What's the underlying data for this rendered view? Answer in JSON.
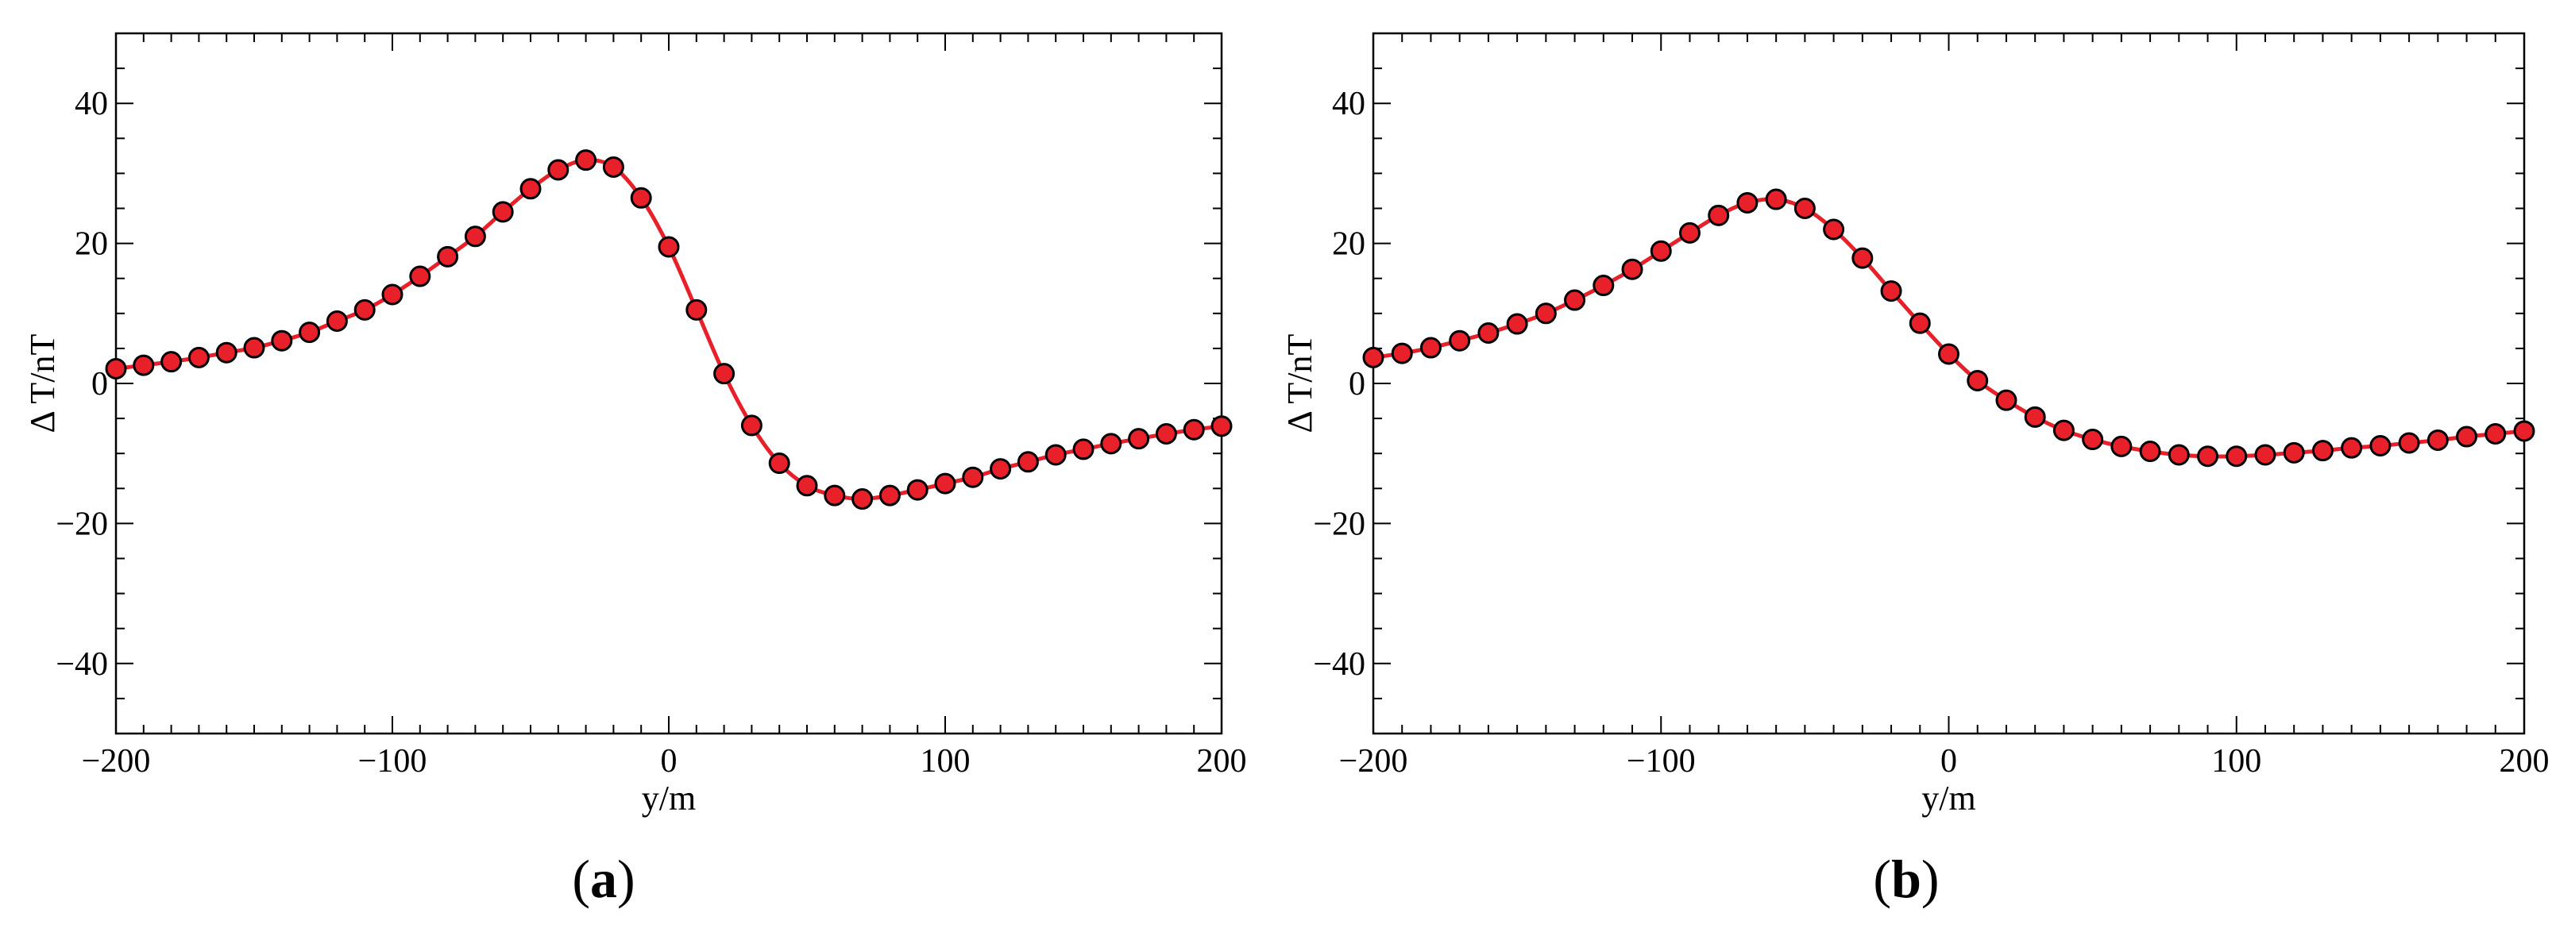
{
  "chart_data": [
    {
      "type": "line",
      "panel_label": "a",
      "xlabel": "y/m",
      "ylabel": "Δ T/nT",
      "xlim": [
        -200,
        200
      ],
      "ylim": [
        -50,
        50
      ],
      "xticks": [
        -200,
        -100,
        0,
        100,
        200
      ],
      "yticks": [
        -40,
        -20,
        0,
        20,
        40
      ],
      "xtick_labels": [
        "−200",
        "−100",
        "0",
        "100",
        "200"
      ],
      "ytick_labels": [
        "−40",
        "−20",
        "0",
        "20",
        "40"
      ],
      "grid": false,
      "line_color": "#e8202a",
      "marker_color": "#e8202a",
      "marker_edge_color": "#000000",
      "x": [
        -200,
        -190,
        -180,
        -170,
        -160,
        -150,
        -140,
        -130,
        -120,
        -110,
        -100,
        -90,
        -80,
        -70,
        -60,
        -50,
        -40,
        -30,
        -20,
        -10,
        0,
        10,
        20,
        30,
        40,
        50,
        60,
        70,
        80,
        90,
        100,
        110,
        120,
        130,
        140,
        150,
        160,
        170,
        180,
        190,
        200
      ],
      "y": [
        2.1,
        2.6,
        3.1,
        3.7,
        4.4,
        5.1,
        6.1,
        7.3,
        8.9,
        10.5,
        12.7,
        15.3,
        18.1,
        21.0,
        24.5,
        27.8,
        30.5,
        31.9,
        30.9,
        26.5,
        19.5,
        10.5,
        1.4,
        -6.0,
        -11.4,
        -14.6,
        -16.0,
        -16.5,
        -16.0,
        -15.2,
        -14.3,
        -13.4,
        -12.2,
        -11.2,
        -10.2,
        -9.4,
        -8.6,
        -7.9,
        -7.2,
        -6.6,
        -6.1
      ]
    },
    {
      "type": "line",
      "panel_label": "b",
      "xlabel": "y/m",
      "ylabel": "Δ T/nT",
      "xlim": [
        -200,
        200
      ],
      "ylim": [
        -50,
        50
      ],
      "xticks": [
        -200,
        -100,
        0,
        100,
        200
      ],
      "yticks": [
        -40,
        -20,
        0,
        20,
        40
      ],
      "xtick_labels": [
        "−200",
        "−100",
        "0",
        "100",
        "200"
      ],
      "ytick_labels": [
        "−40",
        "−20",
        "0",
        "20",
        "40"
      ],
      "grid": false,
      "line_color": "#e8202a",
      "marker_color": "#e8202a",
      "marker_edge_color": "#000000",
      "x": [
        -200,
        -190,
        -180,
        -170,
        -160,
        -150,
        -140,
        -130,
        -120,
        -110,
        -100,
        -90,
        -80,
        -70,
        -60,
        -50,
        -40,
        -30,
        -20,
        -10,
        0,
        10,
        20,
        30,
        40,
        50,
        60,
        70,
        80,
        90,
        100,
        110,
        120,
        130,
        140,
        150,
        160,
        170,
        180,
        190,
        200
      ],
      "y": [
        3.7,
        4.3,
        5.1,
        6.1,
        7.2,
        8.5,
        10.0,
        11.9,
        14.0,
        16.3,
        18.9,
        21.5,
        24.0,
        25.8,
        26.3,
        25.0,
        22.0,
        17.9,
        13.2,
        8.6,
        4.2,
        0.4,
        -2.4,
        -4.8,
        -6.7,
        -8.0,
        -9.0,
        -9.7,
        -10.2,
        -10.4,
        -10.4,
        -10.2,
        -9.9,
        -9.6,
        -9.2,
        -8.9,
        -8.5,
        -8.1,
        -7.6,
        -7.2,
        -6.8
      ]
    }
  ]
}
